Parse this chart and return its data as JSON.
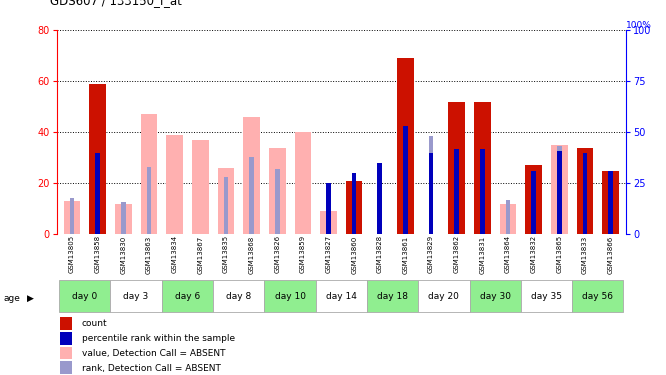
{
  "title": "GDS607 / 133150_f_at",
  "samples": [
    "GSM13805",
    "GSM13858",
    "GSM13830",
    "GSM13863",
    "GSM13834",
    "GSM13867",
    "GSM13835",
    "GSM13868",
    "GSM13826",
    "GSM13859",
    "GSM13827",
    "GSM13860",
    "GSM13828",
    "GSM13861",
    "GSM13829",
    "GSM13862",
    "GSM13831",
    "GSM13864",
    "GSM13832",
    "GSM13865",
    "GSM13833",
    "GSM13866"
  ],
  "groups": [
    {
      "label": "day 0",
      "start": 0,
      "end": 2,
      "color": "#90ee90"
    },
    {
      "label": "day 3",
      "start": 2,
      "end": 4,
      "color": "#ffffff"
    },
    {
      "label": "day 6",
      "start": 4,
      "end": 6,
      "color": "#90ee90"
    },
    {
      "label": "day 8",
      "start": 6,
      "end": 8,
      "color": "#ffffff"
    },
    {
      "label": "day 10",
      "start": 8,
      "end": 10,
      "color": "#90ee90"
    },
    {
      "label": "day 14",
      "start": 10,
      "end": 12,
      "color": "#ffffff"
    },
    {
      "label": "day 18",
      "start": 12,
      "end": 14,
      "color": "#90ee90"
    },
    {
      "label": "day 20",
      "start": 14,
      "end": 16,
      "color": "#ffffff"
    },
    {
      "label": "day 30",
      "start": 16,
      "end": 18,
      "color": "#90ee90"
    },
    {
      "label": "day 35",
      "start": 18,
      "end": 20,
      "color": "#ffffff"
    },
    {
      "label": "day 56",
      "start": 20,
      "end": 22,
      "color": "#90ee90"
    }
  ],
  "count_present": [
    null,
    59,
    null,
    null,
    null,
    null,
    null,
    null,
    null,
    null,
    null,
    21,
    null,
    69,
    null,
    52,
    52,
    null,
    27,
    null,
    34,
    25
  ],
  "count_absent": [
    13,
    null,
    12,
    47,
    39,
    37,
    26,
    46,
    34,
    40,
    9,
    null,
    null,
    null,
    null,
    null,
    null,
    12,
    null,
    35,
    null,
    null
  ],
  "rank_present": [
    null,
    40,
    null,
    null,
    null,
    null,
    null,
    null,
    null,
    null,
    25,
    30,
    35,
    53,
    40,
    42,
    42,
    null,
    31,
    41,
    40,
    31
  ],
  "rank_absent": [
    18,
    null,
    16,
    33,
    null,
    null,
    28,
    38,
    32,
    null,
    12,
    null,
    null,
    null,
    48,
    null,
    null,
    17,
    null,
    43,
    null,
    null
  ],
  "ylim_left": [
    0,
    80
  ],
  "ylim_right": [
    0,
    100
  ],
  "yticks_left": [
    0,
    20,
    40,
    60,
    80
  ],
  "yticks_right": [
    0,
    25,
    50,
    75,
    100
  ],
  "count_color": "#cc1100",
  "count_absent_color": "#ffb0b0",
  "rank_present_color": "#0000bb",
  "rank_absent_color": "#9999cc"
}
